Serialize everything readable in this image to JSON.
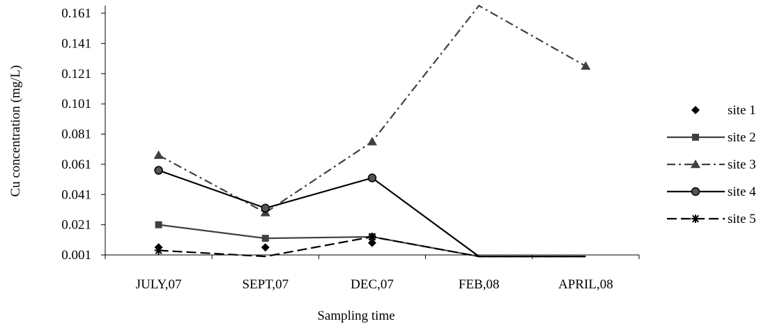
{
  "chart_data": {
    "type": "line",
    "xlabel": "Sampling time",
    "ylabel": "Cu concentration  (mg/L)",
    "categories": [
      "JULY,07",
      "SEPT,07",
      "DEC,07",
      "FEB,08",
      "APRIL,08"
    ],
    "yticks": [
      "0.001",
      "0.021",
      "0.041",
      "0.061",
      "0.081",
      "0.101",
      "0.121",
      "0.141",
      "0.161"
    ],
    "ylim": [
      0.001,
      0.161
    ],
    "grid": false,
    "legend_position": "right",
    "series": [
      {
        "name": "site 1",
        "values": [
          0.006,
          0.006,
          0.009,
          null,
          null
        ],
        "color": "#000000",
        "line": "none",
        "marker": "diamond"
      },
      {
        "name": "site 2",
        "values": [
          0.021,
          0.012,
          0.013,
          0.0,
          0.0
        ],
        "color": "#404040",
        "line": "solid",
        "marker": "square"
      },
      {
        "name": "site 3",
        "values": [
          0.067,
          0.029,
          0.076,
          0.166,
          0.126
        ],
        "color": "#404040",
        "line": "dashdot",
        "marker": "triangle"
      },
      {
        "name": "site 4",
        "values": [
          0.057,
          0.032,
          0.052,
          0.0,
          0.0
        ],
        "color": "#000000",
        "line": "solid",
        "marker": "circle"
      },
      {
        "name": "site 5",
        "values": [
          0.004,
          0.0,
          0.013,
          0.0,
          0.0
        ],
        "color": "#000000",
        "line": "dashed",
        "marker": "star"
      }
    ]
  }
}
